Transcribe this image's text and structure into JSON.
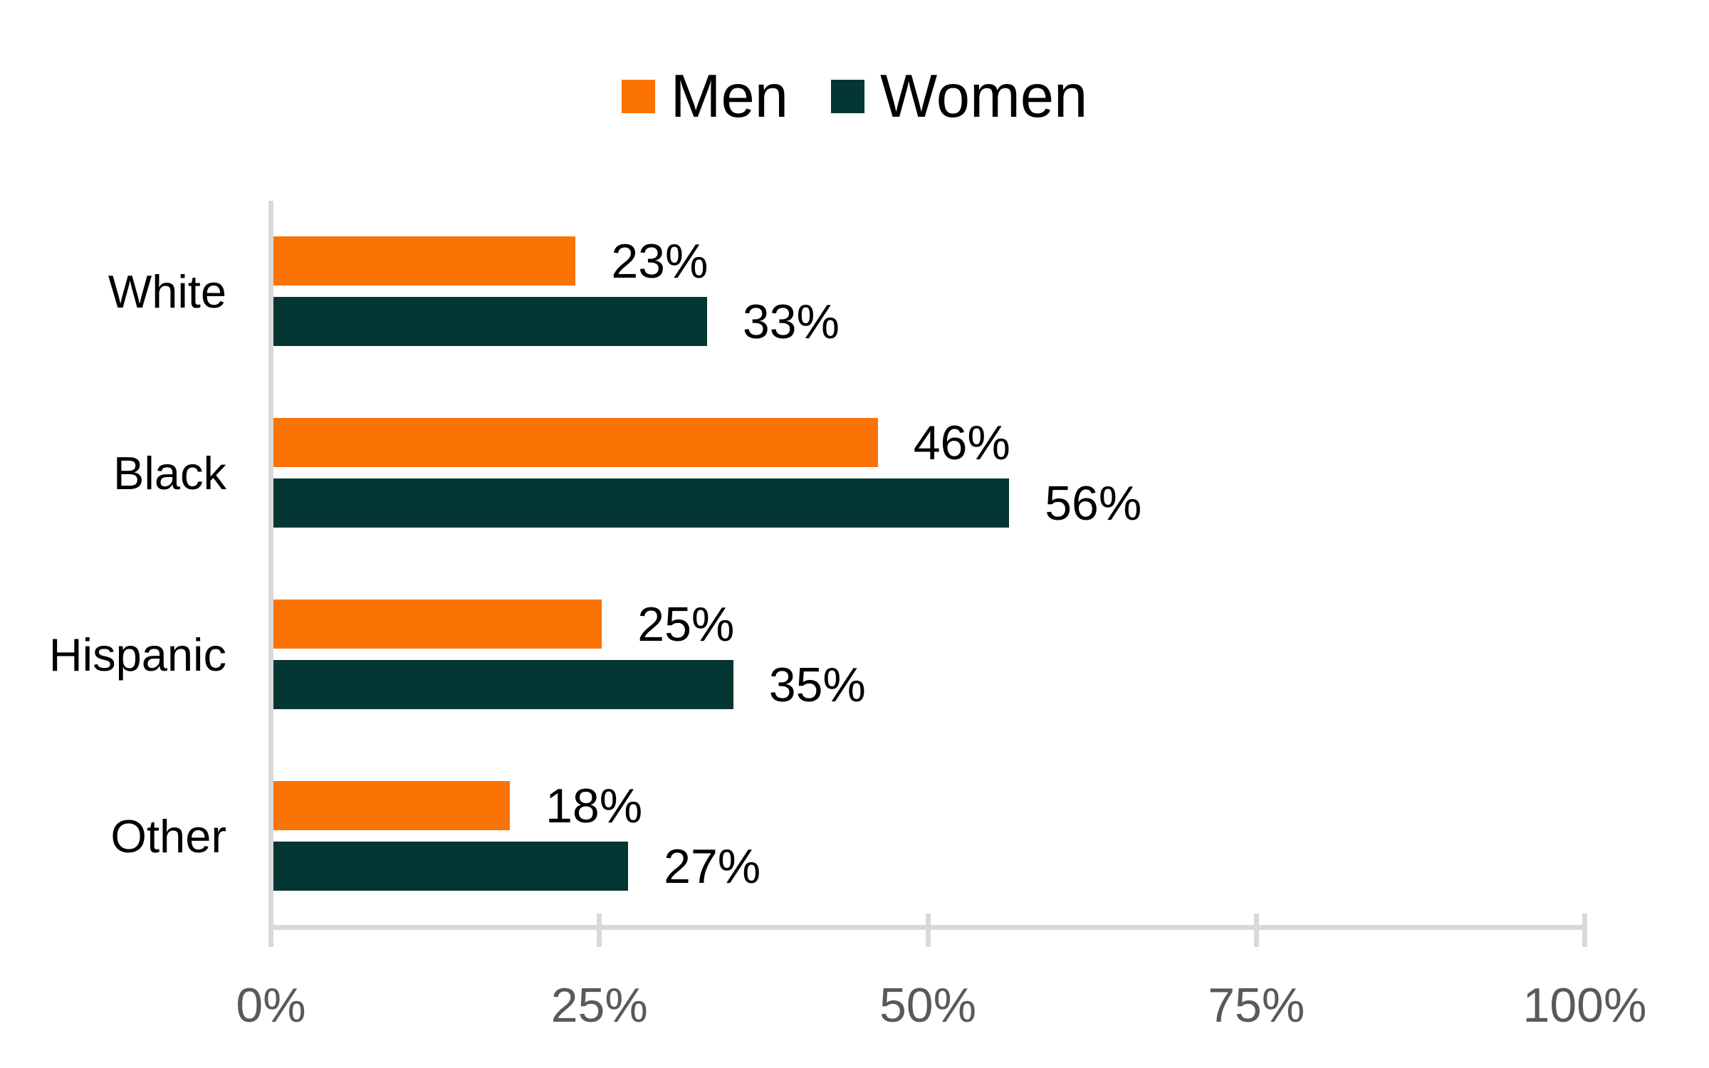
{
  "chart_data": {
    "type": "bar",
    "orientation": "horizontal",
    "title": "",
    "categories": [
      "White",
      "Black",
      "Hispanic",
      "Other"
    ],
    "series": [
      {
        "name": "Men",
        "color": "#FB7304",
        "values": [
          23,
          46,
          25,
          18
        ],
        "data_labels": [
          "23%",
          "46%",
          "25%",
          "18%"
        ]
      },
      {
        "name": "Women",
        "color": "#043733",
        "values": [
          33,
          56,
          35,
          27
        ],
        "data_labels": [
          "33%",
          "56%",
          "35%",
          "27%"
        ]
      }
    ],
    "x_axis": {
      "range": [
        0,
        100
      ],
      "ticks": [
        0,
        25,
        50,
        75,
        100
      ],
      "tick_labels": [
        "0%",
        "25%",
        "50%",
        "75%",
        "100%"
      ]
    },
    "y_axis": {
      "label": ""
    },
    "legend_position": "top-center",
    "grid": false,
    "data_labels_visible": true
  },
  "style": {
    "background": "#FFFFFF",
    "axis_line_color": "#D9D9D9",
    "tick_label_color": "#595959",
    "label_color": "#000000"
  }
}
